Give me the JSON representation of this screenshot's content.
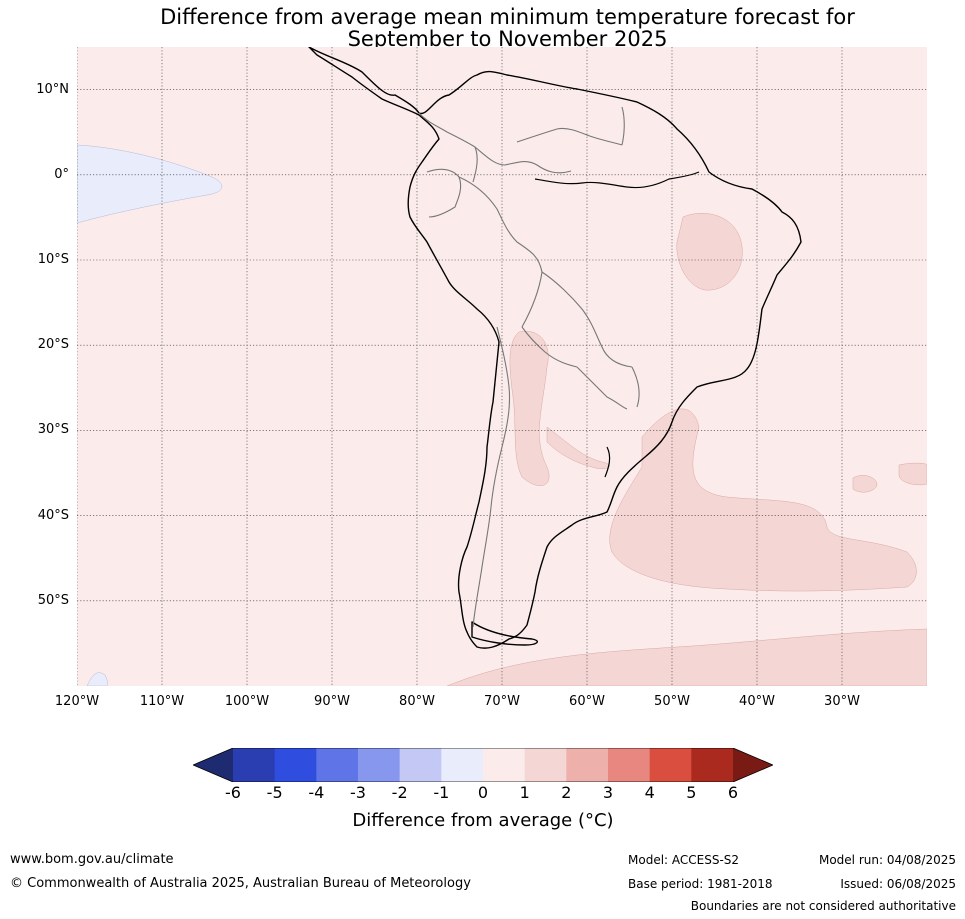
{
  "title_line1": "Difference from average mean minimum temperature forecast for",
  "title_line2": "September to November 2025",
  "map": {
    "lon_range": [
      -120,
      -20
    ],
    "lat_range": [
      -60,
      15
    ],
    "lat_labels": [
      "10°N",
      "0°",
      "10°S",
      "20°S",
      "30°S",
      "40°S",
      "50°S"
    ],
    "lat_values": [
      10,
      0,
      -10,
      -20,
      -30,
      -40,
      -50
    ],
    "lon_labels": [
      "120°W",
      "110°W",
      "100°W",
      "90°W",
      "80°W",
      "70°W",
      "60°W",
      "50°W",
      "40°W",
      "30°W"
    ],
    "lon_values": [
      -120,
      -110,
      -100,
      -90,
      -80,
      -70,
      -60,
      -50,
      -40,
      -30
    ],
    "background_color": "#fbeceb",
    "region_fill_1_2": "#f4d6d4",
    "region_fill_neg": "#e8ecfb",
    "gridlines": true
  },
  "colorbar": {
    "ticks": [
      "-6",
      "-5",
      "-4",
      "-3",
      "-2",
      "-1",
      "0",
      "1",
      "2",
      "3",
      "4",
      "5",
      "6"
    ],
    "colors": [
      "#1f2b70",
      "#2a3eb1",
      "#2f4ee0",
      "#5f74e6",
      "#8897ee",
      "#c3c9f4",
      "#e8ecfb",
      "#fbeceb",
      "#f4d6d4",
      "#eeb0aa",
      "#e8877f",
      "#d94e3e",
      "#ab2a1f",
      "#7a1a14"
    ],
    "label": "Difference from average (°C)"
  },
  "footer": {
    "website": "www.bom.gov.au/climate",
    "copyright": "© Commonwealth of Australia 2025, Australian Bureau of Meteorology",
    "model": "Model: ACCESS-S2",
    "base_period": "Base period: 1981-2018",
    "model_run": "Model run: 04/08/2025",
    "issued": "Issued: 06/08/2025",
    "disclaimer": "Boundaries are not considered authoritative"
  }
}
